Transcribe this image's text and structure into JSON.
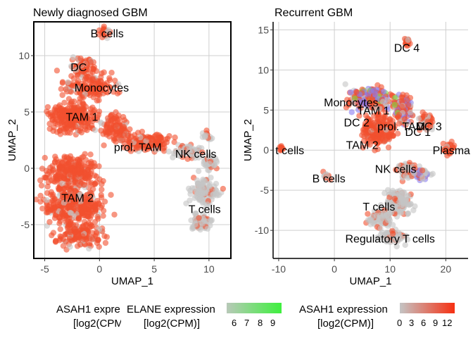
{
  "chart_data": [
    {
      "type": "scatter",
      "title": "Newly diagnosed GBM",
      "xlabel": "UMAP_1",
      "ylabel": "UMAP_2",
      "xlim": [
        -6,
        12
      ],
      "ylim": [
        -8,
        13
      ],
      "x_ticks": [
        -5,
        0,
        5,
        10
      ],
      "y_ticks": [
        -5,
        0,
        5,
        10
      ],
      "tick_labels_x": [
        "-5",
        "0",
        "5",
        "10"
      ],
      "tick_labels_y": [
        "-5",
        "0",
        "5",
        "10"
      ],
      "grid": true,
      "panel_border": true,
      "cluster_labels": [
        {
          "label": "B cells",
          "x": 0.7,
          "y": 12.0
        },
        {
          "label": "DC",
          "x": -1.9,
          "y": 9.0
        },
        {
          "label": "Monocytes",
          "x": 0.2,
          "y": 7.2
        },
        {
          "label": "TAM 1",
          "x": -1.6,
          "y": 4.6
        },
        {
          "label": "prol. TAM",
          "x": 3.5,
          "y": 1.9
        },
        {
          "label": "NK cells",
          "x": 8.8,
          "y": 1.3
        },
        {
          "label": "TAM 2",
          "x": -2.0,
          "y": -2.6
        },
        {
          "label": "T cells",
          "x": 9.6,
          "y": -3.6
        }
      ],
      "color_legend": {
        "title": [
          "ASAH1 expression",
          "[log2(CPM)]"
        ]
      }
    },
    {
      "type": "scatter",
      "title": "Recurrent GBM",
      "xlabel": "UMAP_1",
      "ylabel": "UMAP_2",
      "xlim": [
        -11,
        24
      ],
      "ylim": [
        -13.5,
        16
      ],
      "x_ticks": [
        -10,
        0,
        10,
        20
      ],
      "y_ticks": [
        -10,
        -5,
        0,
        5,
        10,
        15
      ],
      "tick_labels_x": [
        "-10",
        "0",
        "10",
        "20"
      ],
      "tick_labels_y": [
        "-10",
        "-5",
        "0",
        "5",
        "10",
        "15"
      ],
      "grid": true,
      "panel_border": false,
      "cluster_labels": [
        {
          "label": "DC 4",
          "x": 13.0,
          "y": 12.8
        },
        {
          "label": "Monocytes",
          "x": 3.0,
          "y": 6.0
        },
        {
          "label": "TAM 1",
          "x": 7.0,
          "y": 5.0
        },
        {
          "label": "DC 2",
          "x": 4.0,
          "y": 3.5
        },
        {
          "label": "prol. TAM",
          "x": 12.0,
          "y": 3.0
        },
        {
          "label": "DC 3",
          "x": 17.0,
          "y": 3.0
        },
        {
          "label": "DC 1",
          "x": 15.0,
          "y": 2.3
        },
        {
          "label": "TAM 2",
          "x": 5.0,
          "y": 0.7
        },
        {
          "label": "Plasma",
          "x": 21.0,
          "y": 0.0
        },
        {
          "label": "t cells",
          "x": -8.0,
          "y": 0.0
        },
        {
          "label": "NK cells",
          "x": 11.0,
          "y": -2.3
        },
        {
          "label": "B cells",
          "x": -1.0,
          "y": -3.5
        },
        {
          "label": "T cells",
          "x": 8.0,
          "y": -7.0
        },
        {
          "label": "Regulatory T cells",
          "x": 10.0,
          "y": -11.0
        }
      ]
    }
  ],
  "legends": {
    "asah1_left": {
      "title": [
        "ASAH1 expre",
        "[log2(CPM"
      ]
    },
    "elane": {
      "title": [
        "ELANE expression",
        "[log2(CPM)]"
      ],
      "ticks": [
        "6",
        "7",
        "8",
        "9"
      ],
      "color_low": "#b8c9b8",
      "color_high": "#3ef03e"
    },
    "asah1_right": {
      "title": [
        "ASAH1 expression",
        "[log2(CPM)]"
      ],
      "ticks": [
        "0",
        "3",
        "6",
        "9",
        "12"
      ],
      "color_low": "#c4c4c4",
      "color_high": "#f63012"
    }
  },
  "colors": {
    "high_expression": "#f2502f",
    "low_expression": "#c4c4c4",
    "elane_points": "#8a7df0",
    "elane_green": "#7fdc44",
    "grid": "#cfcfcf",
    "border": "#000000"
  }
}
